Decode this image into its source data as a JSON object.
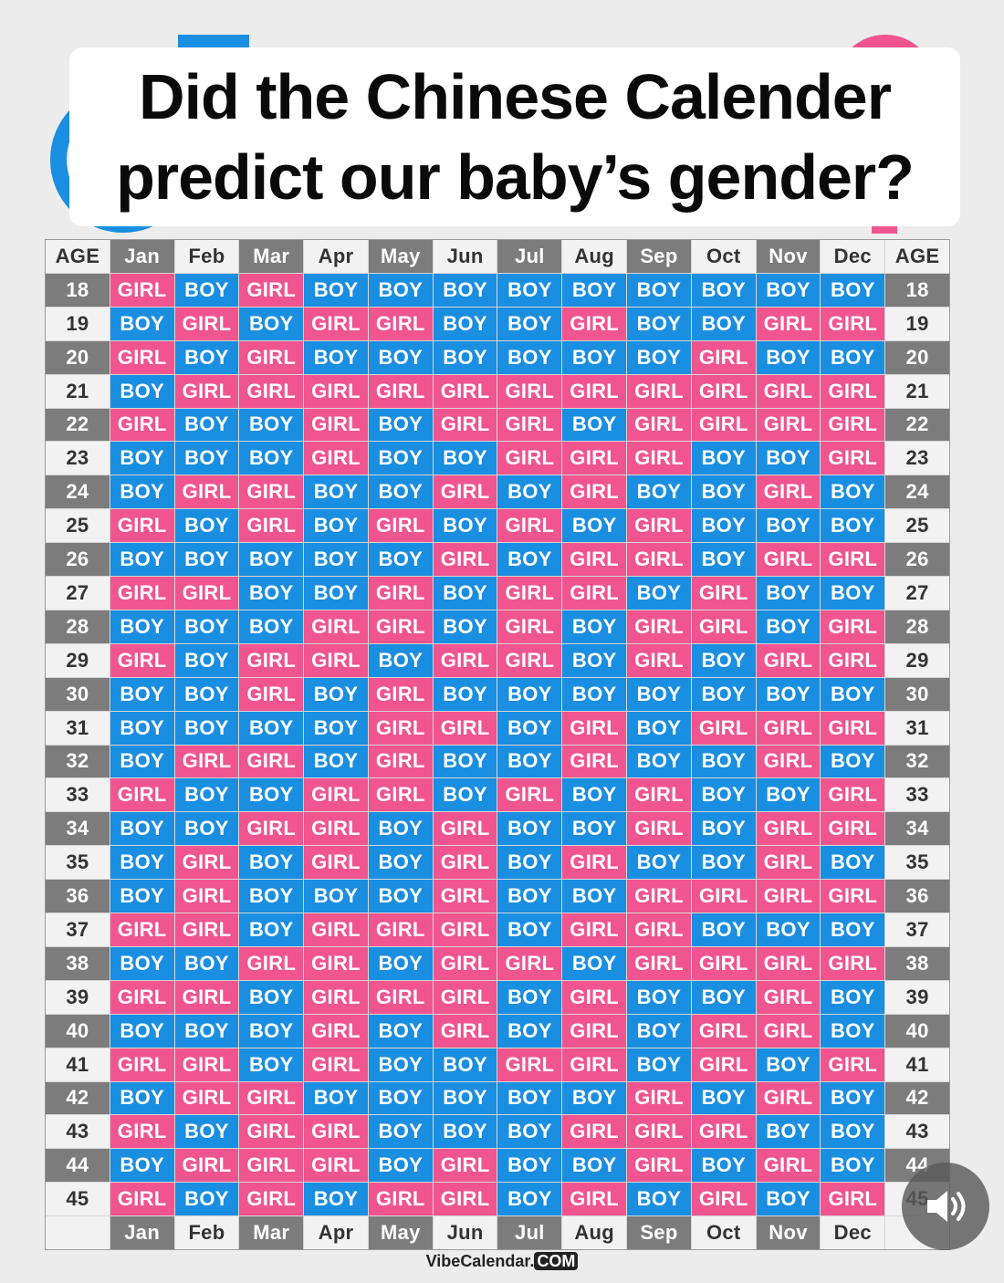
{
  "title": "Did the Chinese Calender predict our baby’s gender?",
  "colors": {
    "boy": "#1a8ee0",
    "girl": "#f0558f",
    "header_dark": "#7c7c7c",
    "header_light": "#f2f2f2"
  },
  "age_label": "AGE",
  "months": [
    "Jan",
    "Feb",
    "Mar",
    "Apr",
    "May",
    "Jun",
    "Jul",
    "Aug",
    "Sep",
    "Oct",
    "Nov",
    "Dec"
  ],
  "rows": [
    {
      "age": "18",
      "cells": [
        "GIRL",
        "BOY",
        "GIRL",
        "BOY",
        "BOY",
        "BOY",
        "BOY",
        "BOY",
        "BOY",
        "BOY",
        "BOY",
        "BOY"
      ]
    },
    {
      "age": "19",
      "cells": [
        "BOY",
        "GIRL",
        "BOY",
        "GIRL",
        "GIRL",
        "BOY",
        "BOY",
        "GIRL",
        "BOY",
        "BOY",
        "GIRL",
        "GIRL"
      ]
    },
    {
      "age": "20",
      "cells": [
        "GIRL",
        "BOY",
        "GIRL",
        "BOY",
        "BOY",
        "BOY",
        "BOY",
        "BOY",
        "BOY",
        "GIRL",
        "BOY",
        "BOY"
      ]
    },
    {
      "age": "21",
      "cells": [
        "BOY",
        "GIRL",
        "GIRL",
        "GIRL",
        "GIRL",
        "GIRL",
        "GIRL",
        "GIRL",
        "GIRL",
        "GIRL",
        "GIRL",
        "GIRL"
      ]
    },
    {
      "age": "22",
      "cells": [
        "GIRL",
        "BOY",
        "BOY",
        "GIRL",
        "BOY",
        "GIRL",
        "GIRL",
        "BOY",
        "GIRL",
        "GIRL",
        "GIRL",
        "GIRL"
      ]
    },
    {
      "age": "23",
      "cells": [
        "BOY",
        "BOY",
        "BOY",
        "GIRL",
        "BOY",
        "BOY",
        "GIRL",
        "GIRL",
        "GIRL",
        "BOY",
        "BOY",
        "GIRL"
      ]
    },
    {
      "age": "24",
      "cells": [
        "BOY",
        "GIRL",
        "GIRL",
        "BOY",
        "BOY",
        "GIRL",
        "BOY",
        "GIRL",
        "BOY",
        "BOY",
        "GIRL",
        "BOY"
      ]
    },
    {
      "age": "25",
      "cells": [
        "GIRL",
        "BOY",
        "GIRL",
        "BOY",
        "GIRL",
        "BOY",
        "GIRL",
        "BOY",
        "GIRL",
        "BOY",
        "BOY",
        "BOY"
      ]
    },
    {
      "age": "26",
      "cells": [
        "BOY",
        "BOY",
        "BOY",
        "BOY",
        "BOY",
        "GIRL",
        "BOY",
        "GIRL",
        "GIRL",
        "BOY",
        "GIRL",
        "GIRL"
      ]
    },
    {
      "age": "27",
      "cells": [
        "GIRL",
        "GIRL",
        "BOY",
        "BOY",
        "GIRL",
        "BOY",
        "GIRL",
        "GIRL",
        "BOY",
        "GIRL",
        "BOY",
        "BOY"
      ]
    },
    {
      "age": "28",
      "cells": [
        "BOY",
        "BOY",
        "BOY",
        "GIRL",
        "GIRL",
        "BOY",
        "GIRL",
        "BOY",
        "GIRL",
        "GIRL",
        "BOY",
        "GIRL"
      ]
    },
    {
      "age": "29",
      "cells": [
        "GIRL",
        "BOY",
        "GIRL",
        "GIRL",
        "BOY",
        "GIRL",
        "GIRL",
        "BOY",
        "GIRL",
        "BOY",
        "GIRL",
        "GIRL"
      ]
    },
    {
      "age": "30",
      "cells": [
        "BOY",
        "BOY",
        "GIRL",
        "BOY",
        "GIRL",
        "BOY",
        "BOY",
        "BOY",
        "BOY",
        "BOY",
        "BOY",
        "BOY"
      ]
    },
    {
      "age": "31",
      "cells": [
        "BOY",
        "BOY",
        "BOY",
        "BOY",
        "GIRL",
        "GIRL",
        "BOY",
        "GIRL",
        "BOY",
        "GIRL",
        "GIRL",
        "GIRL"
      ]
    },
    {
      "age": "32",
      "cells": [
        "BOY",
        "GIRL",
        "GIRL",
        "BOY",
        "GIRL",
        "BOY",
        "BOY",
        "GIRL",
        "BOY",
        "BOY",
        "GIRL",
        "BOY"
      ]
    },
    {
      "age": "33",
      "cells": [
        "GIRL",
        "BOY",
        "BOY",
        "GIRL",
        "GIRL",
        "BOY",
        "GIRL",
        "BOY",
        "GIRL",
        "BOY",
        "BOY",
        "GIRL"
      ]
    },
    {
      "age": "34",
      "cells": [
        "BOY",
        "BOY",
        "GIRL",
        "GIRL",
        "BOY",
        "GIRL",
        "BOY",
        "BOY",
        "GIRL",
        "BOY",
        "GIRL",
        "GIRL"
      ]
    },
    {
      "age": "35",
      "cells": [
        "BOY",
        "GIRL",
        "BOY",
        "GIRL",
        "BOY",
        "GIRL",
        "BOY",
        "GIRL",
        "BOY",
        "BOY",
        "GIRL",
        "BOY"
      ]
    },
    {
      "age": "36",
      "cells": [
        "BOY",
        "GIRL",
        "BOY",
        "BOY",
        "BOY",
        "GIRL",
        "BOY",
        "BOY",
        "GIRL",
        "GIRL",
        "GIRL",
        "GIRL"
      ]
    },
    {
      "age": "37",
      "cells": [
        "GIRL",
        "GIRL",
        "BOY",
        "GIRL",
        "GIRL",
        "GIRL",
        "BOY",
        "GIRL",
        "GIRL",
        "BOY",
        "BOY",
        "BOY"
      ]
    },
    {
      "age": "38",
      "cells": [
        "BOY",
        "BOY",
        "GIRL",
        "GIRL",
        "BOY",
        "GIRL",
        "GIRL",
        "BOY",
        "GIRL",
        "GIRL",
        "GIRL",
        "GIRL"
      ]
    },
    {
      "age": "39",
      "cells": [
        "GIRL",
        "GIRL",
        "BOY",
        "GIRL",
        "GIRL",
        "GIRL",
        "BOY",
        "GIRL",
        "BOY",
        "BOY",
        "GIRL",
        "BOY"
      ]
    },
    {
      "age": "40",
      "cells": [
        "BOY",
        "BOY",
        "BOY",
        "GIRL",
        "BOY",
        "GIRL",
        "BOY",
        "GIRL",
        "BOY",
        "GIRL",
        "GIRL",
        "BOY"
      ]
    },
    {
      "age": "41",
      "cells": [
        "GIRL",
        "GIRL",
        "BOY",
        "GIRL",
        "BOY",
        "BOY",
        "GIRL",
        "GIRL",
        "BOY",
        "GIRL",
        "BOY",
        "GIRL"
      ]
    },
    {
      "age": "42",
      "cells": [
        "BOY",
        "GIRL",
        "GIRL",
        "BOY",
        "BOY",
        "BOY",
        "BOY",
        "BOY",
        "GIRL",
        "BOY",
        "GIRL",
        "BOY"
      ]
    },
    {
      "age": "43",
      "cells": [
        "GIRL",
        "BOY",
        "GIRL",
        "GIRL",
        "BOY",
        "BOY",
        "BOY",
        "GIRL",
        "GIRL",
        "GIRL",
        "BOY",
        "BOY"
      ]
    },
    {
      "age": "44",
      "cells": [
        "BOY",
        "GIRL",
        "GIRL",
        "GIRL",
        "BOY",
        "GIRL",
        "BOY",
        "BOY",
        "GIRL",
        "BOY",
        "GIRL",
        "BOY"
      ]
    },
    {
      "age": "45",
      "cells": [
        "GIRL",
        "BOY",
        "GIRL",
        "BOY",
        "GIRL",
        "GIRL",
        "BOY",
        "GIRL",
        "BOY",
        "GIRL",
        "BOY",
        "GIRL"
      ]
    }
  ],
  "footer": {
    "site": "VibeCalendar.",
    "tld": "COM"
  },
  "sound_button": {
    "icon": "speaker-icon"
  }
}
